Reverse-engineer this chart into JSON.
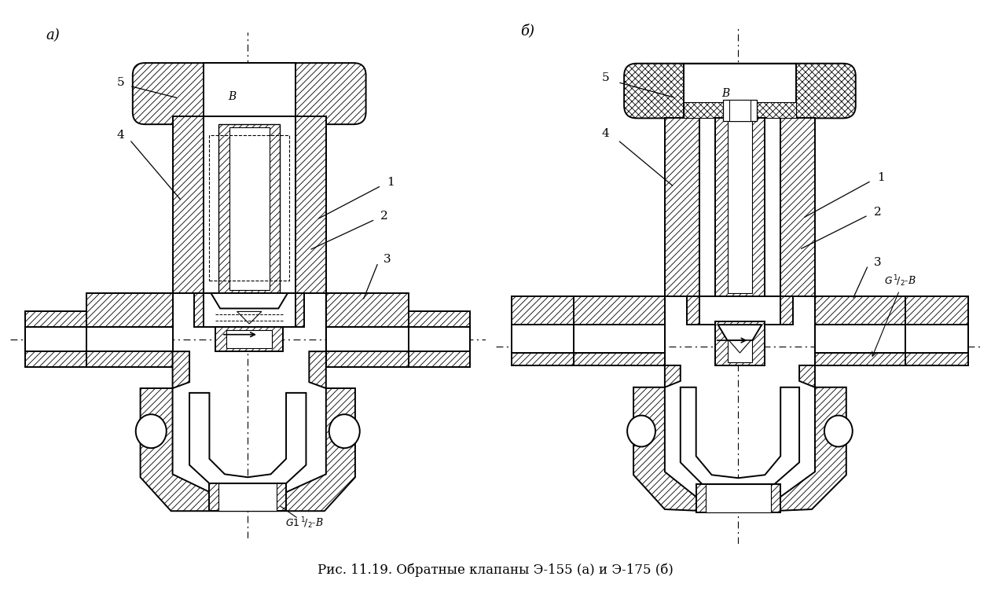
{
  "title": "Рис. 11.19. Обратные клапаны Э-155 (а) и Э-175 (б)",
  "bg_color": "#ffffff",
  "lc": "#000000",
  "label_a": "а)",
  "label_b": "б)",
  "caption_a": "G1 ¹/₂-B",
  "caption_b": "G ¹/₂-B",
  "title_fs": 12,
  "label_fs": 13,
  "ann_fs": 11,
  "hatch_lw": 0.5
}
